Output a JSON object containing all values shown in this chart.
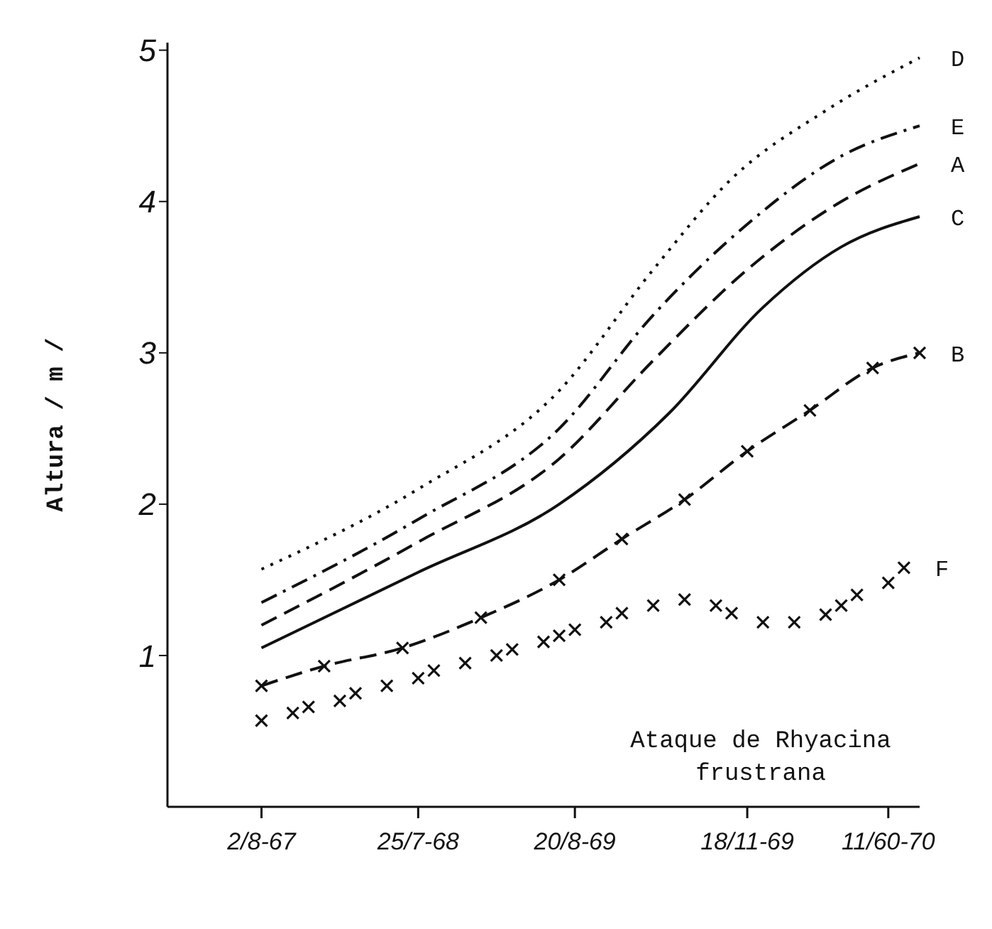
{
  "chart_data": {
    "type": "line",
    "ylabel": "Altura / m /",
    "ylim": [
      0,
      5.05
    ],
    "yticks": [
      1,
      2,
      3,
      4,
      5
    ],
    "categories": [
      null,
      null,
      null,
      null,
      null,
      null,
      "2/8-67",
      null,
      null,
      null,
      null,
      null,
      null,
      null,
      null,
      null,
      "25/7-68",
      null,
      null,
      null,
      null,
      null,
      null,
      null,
      null,
      null,
      "20/8-69",
      null,
      null,
      null,
      null,
      null,
      null,
      null,
      null,
      null,
      null,
      "18/11-69",
      null,
      null,
      null,
      null,
      null,
      null,
      null,
      null,
      "11/60-70",
      null,
      null
    ],
    "annotations": [
      "Ataque de Rhyacina frustrana"
    ],
    "series": [
      {
        "name": "D",
        "color": "#111111",
        "line_style": "dotted",
        "marker": "none",
        "values": [
          null,
          null,
          null,
          null,
          null,
          null,
          1.57,
          null,
          null,
          null,
          null,
          null,
          null,
          null,
          null,
          null,
          2.1,
          null,
          null,
          null,
          null,
          null,
          null,
          null,
          null,
          2.75,
          null,
          null,
          null,
          null,
          null,
          3.55,
          null,
          null,
          null,
          null,
          4.15,
          null,
          null,
          null,
          null,
          null,
          4.6,
          null,
          null,
          null,
          null,
          null,
          4.95
        ]
      },
      {
        "name": "E",
        "color": "#111111",
        "line_style": "dashdot",
        "marker": "none",
        "values": [
          null,
          null,
          null,
          null,
          null,
          null,
          1.35,
          null,
          null,
          null,
          null,
          null,
          null,
          null,
          null,
          null,
          1.9,
          null,
          null,
          null,
          null,
          null,
          null,
          null,
          null,
          2.5,
          null,
          null,
          null,
          null,
          null,
          3.25,
          null,
          null,
          null,
          null,
          null,
          3.85,
          null,
          null,
          null,
          null,
          null,
          4.3,
          null,
          null,
          null,
          null,
          4.5
        ]
      },
      {
        "name": "A",
        "color": "#111111",
        "line_style": "dashed",
        "marker": "none",
        "values": [
          null,
          null,
          null,
          null,
          null,
          null,
          1.2,
          null,
          null,
          null,
          null,
          null,
          null,
          null,
          null,
          null,
          1.75,
          null,
          null,
          null,
          null,
          null,
          null,
          null,
          null,
          2.3,
          null,
          null,
          null,
          null,
          null,
          2.95,
          null,
          null,
          null,
          null,
          null,
          3.55,
          null,
          null,
          null,
          null,
          null,
          4.0,
          null,
          null,
          null,
          null,
          4.25
        ]
      },
      {
        "name": "C",
        "color": "#111111",
        "line_style": "solid",
        "marker": "none",
        "values": [
          null,
          null,
          null,
          null,
          null,
          null,
          1.05,
          null,
          null,
          null,
          null,
          null,
          null,
          null,
          null,
          null,
          1.55,
          null,
          null,
          null,
          null,
          null,
          null,
          null,
          null,
          2.0,
          null,
          null,
          null,
          null,
          null,
          null,
          2.6,
          null,
          null,
          null,
          null,
          null,
          3.3,
          null,
          null,
          null,
          null,
          3.7,
          null,
          null,
          null,
          null,
          3.9
        ]
      },
      {
        "name": "B",
        "color": "#111111",
        "line_style": "dashed",
        "marker": "cross",
        "values": [
          null,
          null,
          null,
          null,
          null,
          null,
          0.8,
          null,
          null,
          null,
          0.93,
          null,
          null,
          null,
          null,
          1.05,
          null,
          null,
          null,
          null,
          1.25,
          null,
          null,
          null,
          null,
          1.5,
          null,
          null,
          null,
          1.77,
          null,
          null,
          null,
          2.03,
          null,
          null,
          null,
          2.35,
          null,
          null,
          null,
          2.62,
          null,
          null,
          null,
          2.9,
          null,
          null,
          3.0
        ]
      },
      {
        "name": "F",
        "type": "scatter",
        "color": "#111111",
        "marker": "cross",
        "values": [
          null,
          null,
          null,
          null,
          null,
          null,
          0.57,
          null,
          0.62,
          0.66,
          null,
          0.7,
          0.75,
          null,
          0.8,
          null,
          0.85,
          0.9,
          null,
          0.95,
          null,
          1.0,
          1.04,
          null,
          1.09,
          1.13,
          1.17,
          null,
          1.22,
          1.28,
          null,
          1.33,
          null,
          1.37,
          null,
          1.33,
          1.28,
          null,
          1.22,
          null,
          1.22,
          null,
          1.27,
          1.33,
          1.4,
          null,
          1.48,
          1.58,
          null
        ]
      }
    ]
  }
}
